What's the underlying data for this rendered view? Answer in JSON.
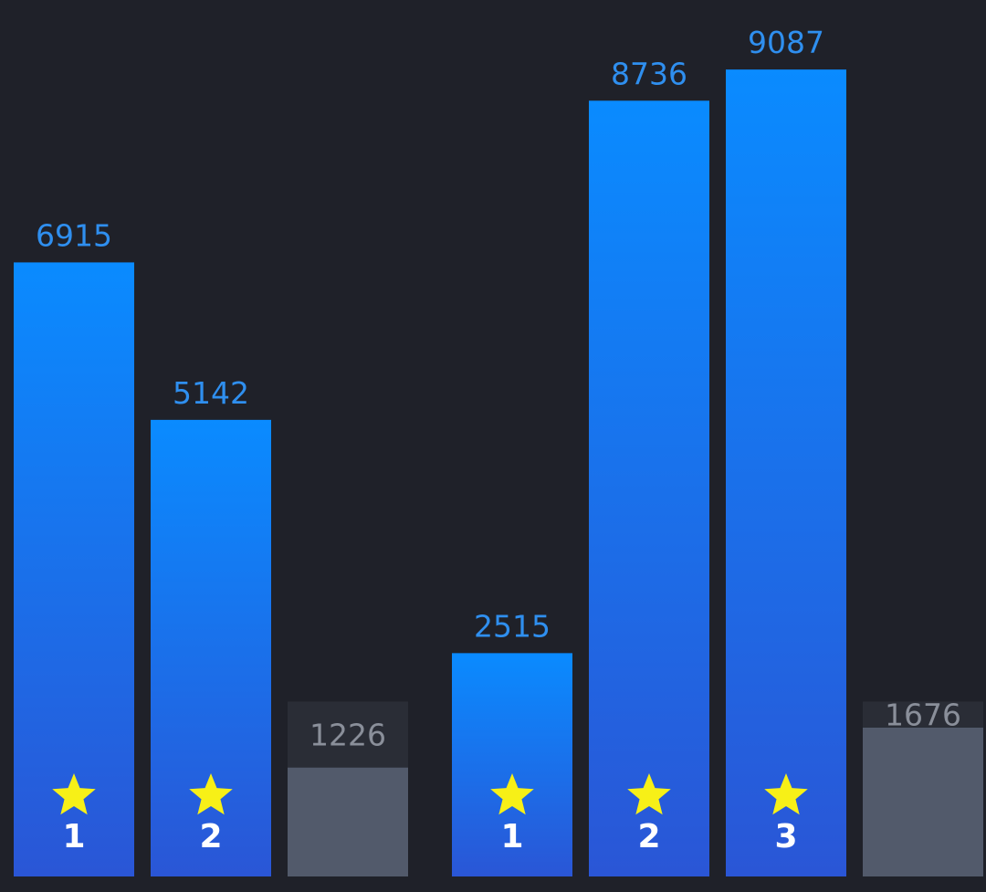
{
  "colors": {
    "background": "#1f2129",
    "bar_gradient_top": "#0a8bff",
    "bar_gradient_bottom": "#2a56d6",
    "bar_value_label": "#2f8fef",
    "locked_bar_fill": "#525a6b",
    "locked_bar_track": "#2a2d36",
    "locked_value_label": "#8a8f9a",
    "star": "#f7f017",
    "rank_text": "#ffffff"
  },
  "chart_data": {
    "type": "bar",
    "ylim": [
      0,
      9870
    ],
    "grid": false,
    "bars": [
      {
        "value": 6915,
        "label": "6915",
        "rank": "1",
        "star": true,
        "locked": false
      },
      {
        "value": 5142,
        "label": "5142",
        "rank": "2",
        "star": true,
        "locked": false
      },
      {
        "value": 1226,
        "label": "1226",
        "rank": "",
        "star": false,
        "locked": true,
        "track_value": 1970
      },
      {
        "value": 2515,
        "label": "2515",
        "rank": "1",
        "star": true,
        "locked": false
      },
      {
        "value": 8736,
        "label": "8736",
        "rank": "2",
        "star": true,
        "locked": false
      },
      {
        "value": 9087,
        "label": "9087",
        "rank": "3",
        "star": true,
        "locked": false
      },
      {
        "value": 1676,
        "label": "1676",
        "rank": "",
        "star": false,
        "locked": true,
        "track_value": 1970
      }
    ]
  }
}
